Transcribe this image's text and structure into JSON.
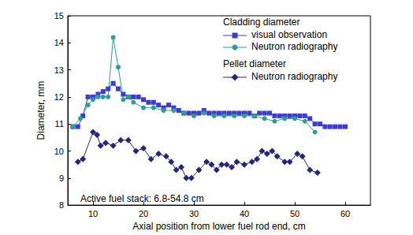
{
  "chart_data": {
    "type": "line",
    "x_label": "Axial position from lower fuel rod end, cm",
    "y_label": "Diameter, mm",
    "xlim": [
      5,
      65
    ],
    "xticks": [
      10,
      20,
      30,
      40,
      50,
      60
    ],
    "ylim": [
      8,
      15
    ],
    "yticks": [
      8,
      9,
      10,
      11,
      12,
      13,
      14,
      15
    ],
    "grid": false,
    "legend": "upper right",
    "annotations": [
      "Active fuel stack: 6.8-54.8 cm"
    ],
    "series": [
      {
        "name": "visual observation",
        "group": "Cladding diameter",
        "color": "#3b3bd6",
        "marker": "square",
        "x": [
          6,
          7,
          8,
          9,
          10,
          11,
          12,
          13,
          14,
          15,
          16,
          17,
          18,
          19,
          20,
          21,
          22,
          23,
          24,
          25,
          26,
          27,
          28,
          29,
          30,
          31,
          32,
          33,
          34,
          35,
          36,
          37,
          38,
          39,
          40,
          41,
          42,
          43,
          44,
          45,
          46,
          47,
          48,
          49,
          50,
          51,
          52,
          53,
          54,
          55,
          56,
          57,
          58,
          59,
          60
        ],
        "values": [
          10.9,
          10.9,
          11.3,
          12.0,
          12.0,
          12.1,
          12.2,
          12.3,
          12.5,
          12.3,
          12.1,
          12.0,
          12.0,
          12.0,
          11.9,
          11.8,
          11.8,
          11.7,
          11.6,
          11.7,
          11.6,
          11.5,
          11.4,
          11.4,
          11.4,
          11.4,
          11.5,
          11.4,
          11.4,
          11.4,
          11.4,
          11.4,
          11.4,
          11.4,
          11.4,
          11.4,
          11.3,
          11.4,
          11.4,
          11.4,
          11.3,
          11.3,
          11.3,
          11.3,
          11.3,
          11.3,
          11.3,
          11.2,
          11.0,
          11.0,
          10.9,
          10.9,
          10.9,
          10.9,
          10.9
        ]
      },
      {
        "name": "Neutron radiography",
        "group": "Cladding diameter",
        "color": "#2e9e8e",
        "marker": "circle",
        "x": [
          6,
          7.5,
          9,
          10,
          11,
          12,
          13,
          14,
          15,
          16,
          17,
          18,
          20,
          22,
          24,
          26,
          28,
          30,
          32,
          34,
          36,
          38,
          40,
          42,
          44,
          46,
          48,
          50,
          52,
          54
        ],
        "values": [
          10.9,
          11.2,
          11.7,
          11.9,
          12.0,
          12.0,
          12.0,
          14.2,
          13.1,
          11.9,
          12.0,
          11.8,
          11.6,
          11.6,
          11.5,
          11.5,
          11.4,
          11.3,
          11.4,
          11.3,
          11.3,
          11.3,
          11.3,
          11.3,
          11.2,
          11.1,
          11.2,
          11.2,
          11.1,
          10.7
        ]
      },
      {
        "name": "Neutron radiography",
        "group": "Pellet diameter",
        "color": "#252580",
        "marker": "diamond",
        "x": [
          7,
          8,
          10,
          10.8,
          11.5,
          12.5,
          14,
          15.5,
          17,
          18.5,
          20,
          21.5,
          23,
          24.5,
          25.5,
          26.5,
          27.5,
          28.5,
          29.5,
          31,
          32.5,
          33.5,
          34.5,
          35.5,
          36.5,
          37.5,
          38.5,
          40,
          41.5,
          42.5,
          43.5,
          44.5,
          45.5,
          46.5,
          48,
          49,
          50.5,
          51.5,
          53,
          54.5
        ],
        "values": [
          9.6,
          9.7,
          10.7,
          10.6,
          10.2,
          10.3,
          10.2,
          10.4,
          10.4,
          10.0,
          10.1,
          9.7,
          9.9,
          9.8,
          9.6,
          9.3,
          9.4,
          9.0,
          9.0,
          9.3,
          9.6,
          9.5,
          9.3,
          9.5,
          9.5,
          9.4,
          9.6,
          9.5,
          9.6,
          9.7,
          10.0,
          9.9,
          10.0,
          9.8,
          9.6,
          9.6,
          9.9,
          9.8,
          9.3,
          9.2
        ]
      }
    ]
  }
}
